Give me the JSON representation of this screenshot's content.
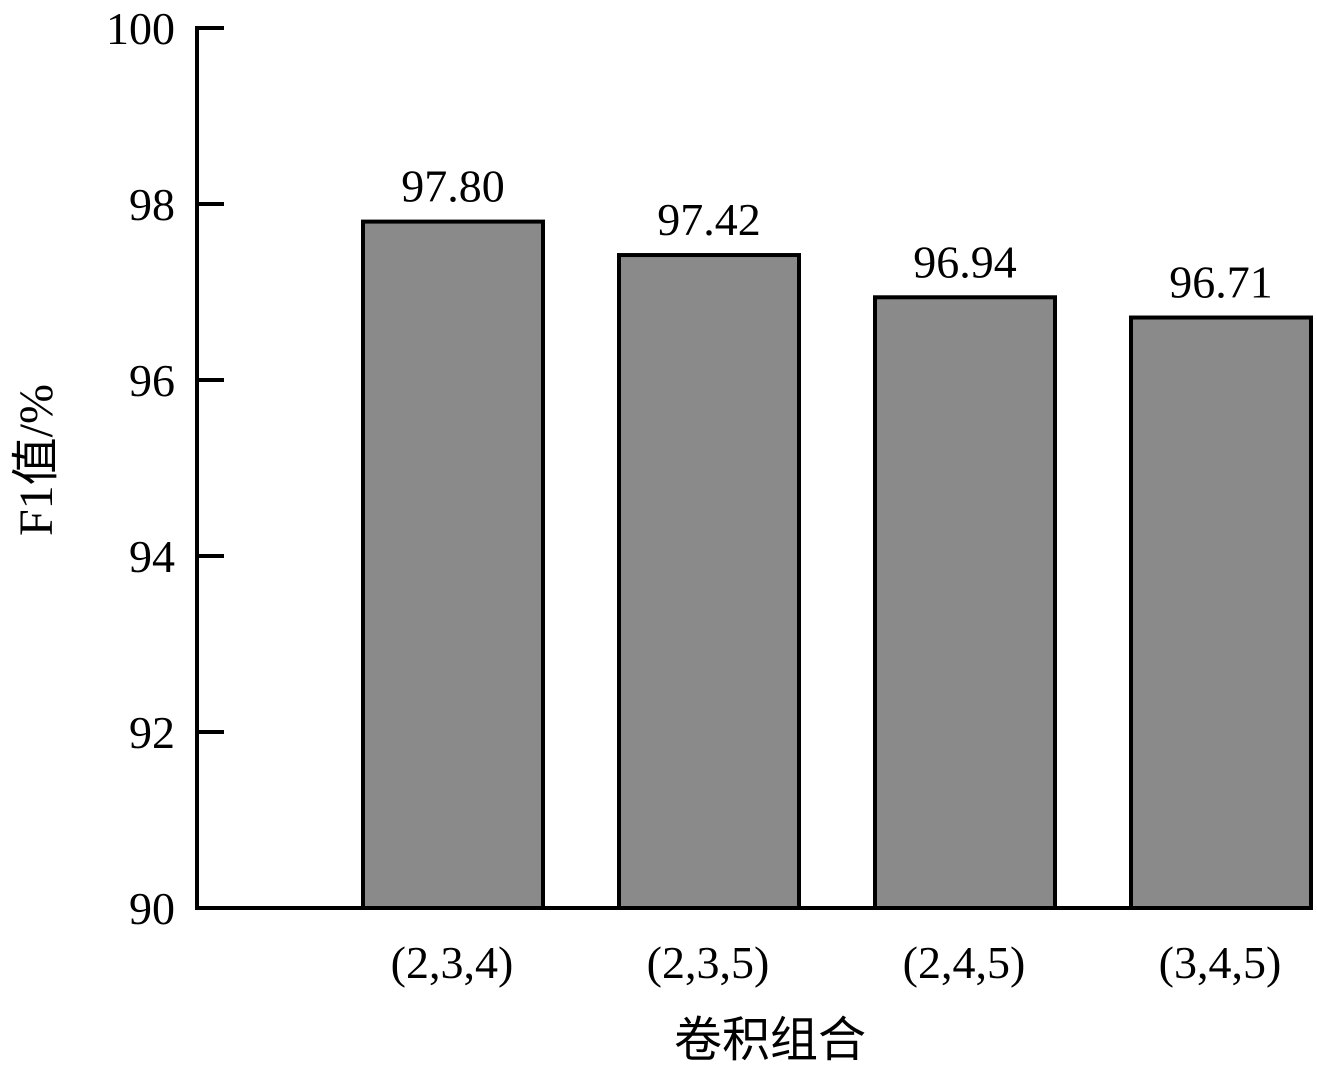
{
  "chart_data": {
    "type": "bar",
    "categories": [
      "(2,3,4)",
      "(2,3,5)",
      "(2,4,5)",
      "(3,4,5)"
    ],
    "values": [
      97.8,
      97.42,
      96.94,
      96.71
    ],
    "value_labels": [
      "97.80",
      "97.42",
      "96.94",
      "96.71"
    ],
    "title": "",
    "xlabel": "卷积组合",
    "ylabel": "F1值/%",
    "ylim": [
      90,
      100
    ],
    "yticks": [
      90,
      92,
      94,
      96,
      98,
      100
    ],
    "grid": false,
    "legend": "none",
    "bar_color": "#8a8a8a",
    "edge_color": "#000000"
  }
}
